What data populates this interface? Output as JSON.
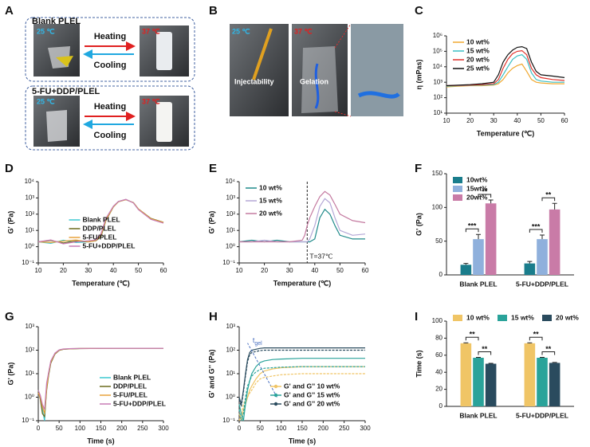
{
  "panel_a": {
    "panel": "A",
    "top_label": "Blank PLEL",
    "bottom_label": "5-FU+DDP/PLEL",
    "cold_top": "25 ℃",
    "hot_top": "37 ℃",
    "cold_bottom": "25 ℃",
    "hot_bottom": "37 ℃",
    "heating_top": "Heating",
    "cooling_top": "Cooling",
    "heating_bottom": "Heating",
    "cooling_bottom": "Cooling"
  },
  "panel_b": {
    "panel": "B",
    "cold": "25 ℃",
    "hot": "37 ℃",
    "left_caption": "Injectability",
    "middle_caption": "Gelation"
  },
  "chart_data": [
    {
      "type": "line",
      "panel": "C",
      "xlabel": "Temperature (℃)",
      "ylabel": "η (mPas)",
      "yscale": "log",
      "legend": "upper left",
      "xlim": [
        10,
        60
      ],
      "xticks": [
        10,
        20,
        30,
        40,
        50,
        60
      ],
      "ylim": [
        10,
        1000000
      ],
      "yticks": [
        {
          "value": 10,
          "label": "10¹"
        },
        {
          "value": 100,
          "label": "10²"
        },
        {
          "value": 1000,
          "label": "10³"
        },
        {
          "value": 10000,
          "label": "10⁴"
        },
        {
          "value": 100000,
          "label": "10⁵"
        },
        {
          "value": 1000000,
          "label": "10⁶"
        }
      ],
      "x": [
        10,
        15,
        20,
        25,
        30,
        32,
        34,
        36,
        38,
        40,
        42,
        44,
        46,
        48,
        50,
        55,
        60
      ],
      "series": [
        {
          "name": "10 wt%",
          "color": "#f0a830",
          "values": [
            500,
            550,
            600,
            600,
            650,
            800,
            1500,
            4000,
            8000,
            12000,
            15000,
            5000,
            1500,
            1000,
            900,
            800,
            800
          ]
        },
        {
          "name": "15 wt%",
          "color": "#3bbfc4",
          "values": [
            550,
            600,
            620,
            650,
            700,
            1000,
            3000,
            10000,
            30000,
            50000,
            60000,
            30000,
            4000,
            1500,
            1200,
            1000,
            1000
          ]
        },
        {
          "name": "20 wt%",
          "color": "#e0302a",
          "values": [
            600,
            620,
            650,
            700,
            800,
            1500,
            8000,
            30000,
            70000,
            100000,
            110000,
            60000,
            8000,
            3000,
            2000,
            1500,
            1300
          ]
        },
        {
          "name": "25 wt%",
          "color": "#111111",
          "values": [
            600,
            650,
            700,
            800,
            1000,
            3000,
            20000,
            60000,
            120000,
            180000,
            200000,
            150000,
            20000,
            5000,
            3000,
            2500,
            2000
          ]
        }
      ]
    },
    {
      "type": "line",
      "panel": "D",
      "xlabel": "Temperature (℃)",
      "ylabel": "G' (Pa)",
      "yscale": "log",
      "legend": "lower center",
      "xlim": [
        10,
        60
      ],
      "xticks": [
        10,
        20,
        30,
        40,
        50,
        60
      ],
      "ylim": [
        0.1,
        10000
      ],
      "yticks": [
        {
          "value": 0.1,
          "label": "10⁻¹"
        },
        {
          "value": 1,
          "label": "10⁰"
        },
        {
          "value": 10,
          "label": "10¹"
        },
        {
          "value": 100,
          "label": "10²"
        },
        {
          "value": 1000,
          "label": "10³"
        },
        {
          "value": 10000,
          "label": "10⁴"
        }
      ],
      "x": [
        10,
        15,
        20,
        25,
        30,
        33,
        35,
        37,
        40,
        42,
        45,
        48,
        50,
        55,
        60
      ],
      "series": [
        {
          "name": "Blank PLEL",
          "color": "#3cc8d0",
          "values": [
            2,
            1.6,
            2.5,
            1.8,
            2,
            2.5,
            5,
            50,
            300,
            600,
            800,
            500,
            200,
            50,
            30
          ]
        },
        {
          "name": "DDP/PLEL",
          "color": "#6b6b1e",
          "values": [
            2,
            2.4,
            1.7,
            2.2,
            2,
            2.3,
            4,
            40,
            280,
            580,
            780,
            520,
            210,
            55,
            32
          ]
        },
        {
          "name": "5-FU/PLEL",
          "color": "#e8a33c",
          "values": [
            2,
            1.8,
            2.2,
            2.6,
            2,
            2.4,
            5,
            45,
            290,
            590,
            790,
            510,
            205,
            52,
            31
          ]
        },
        {
          "name": "5-FU+DDP/PLEL",
          "color": "#c77bb5",
          "values": [
            2,
            2.6,
            1.5,
            2,
            2.3,
            2.6,
            6,
            55,
            310,
            610,
            820,
            490,
            190,
            48,
            28
          ]
        }
      ]
    },
    {
      "type": "line",
      "panel": "E",
      "xlabel": "Temperature (℃)",
      "ylabel": "G' (Pa)",
      "yscale": "log",
      "legend": "upper left",
      "annotation": "T=37℃",
      "vline": 37,
      "xlim": [
        10,
        60
      ],
      "xticks": [
        10,
        20,
        30,
        40,
        50,
        60
      ],
      "ylim": [
        0.1,
        10000
      ],
      "yticks": [
        {
          "value": 0.1,
          "label": "10⁻¹"
        },
        {
          "value": 1,
          "label": "10⁰"
        },
        {
          "value": 10,
          "label": "10¹"
        },
        {
          "value": 100,
          "label": "10²"
        },
        {
          "value": 1000,
          "label": "10³"
        },
        {
          "value": 10000,
          "label": "10⁴"
        }
      ],
      "x": [
        10,
        15,
        20,
        25,
        30,
        35,
        36,
        37,
        38,
        40,
        42,
        44,
        46,
        48,
        50,
        55,
        60
      ],
      "series": [
        {
          "name": "10 wt%",
          "color": "#1f8a8a",
          "values": [
            2,
            2.5,
            2,
            2.5,
            2,
            2,
            2,
            2,
            2,
            3,
            60,
            200,
            100,
            20,
            5,
            3,
            3
          ]
        },
        {
          "name": "15 wt%",
          "color": "#b4a7d6",
          "values": [
            2,
            2,
            2.5,
            2,
            2,
            2,
            2,
            2,
            3,
            20,
            300,
            900,
            500,
            60,
            10,
            5,
            6
          ]
        },
        {
          "name": "20 wt%",
          "color": "#c47aa0",
          "values": [
            2,
            2,
            2,
            2,
            2,
            2.5,
            5,
            20,
            60,
            300,
            1200,
            2500,
            1500,
            400,
            100,
            40,
            30
          ]
        }
      ]
    },
    {
      "type": "bar",
      "panel": "F",
      "ylabel": "G' (Pa)",
      "legend": "upper left",
      "categories": [
        "Blank PLEL",
        "5-FU+DDP/PLEL"
      ],
      "ylim": [
        0,
        150
      ],
      "yticks": [
        0,
        50,
        100,
        150
      ],
      "series": [
        {
          "name": "10wt%",
          "color": "#1a7d8c",
          "values": [
            15,
            17
          ],
          "errors": [
            2,
            3
          ]
        },
        {
          "name": "15wt%",
          "color": "#8fb0dc",
          "values": [
            53,
            53
          ],
          "errors": [
            7,
            6
          ]
        },
        {
          "name": "20wt%",
          "color": "#c97ba7",
          "values": [
            106,
            97
          ],
          "errors": [
            5,
            9
          ]
        }
      ],
      "significance": [
        {
          "category": 0,
          "from": 0,
          "to": 1,
          "label": "***"
        },
        {
          "category": 0,
          "from": 1,
          "to": 2,
          "label": "**"
        },
        {
          "category": 1,
          "from": 0,
          "to": 1,
          "label": "***"
        },
        {
          "category": 1,
          "from": 1,
          "to": 2,
          "label": "**"
        }
      ]
    },
    {
      "type": "line",
      "panel": "G",
      "xlabel": "Time (s)",
      "ylabel": "G' (Pa)",
      "yscale": "log",
      "legend": "lower right",
      "xlim": [
        0,
        300
      ],
      "xticks": [
        0,
        50,
        100,
        150,
        200,
        250,
        300
      ],
      "ylim": [
        0.1,
        1000
      ],
      "yticks": [
        {
          "value": 0.1,
          "label": "10⁻¹"
        },
        {
          "value": 1,
          "label": "10⁰"
        },
        {
          "value": 10,
          "label": "10¹"
        },
        {
          "value": 100,
          "label": "10²"
        },
        {
          "value": 1000,
          "label": "10³"
        }
      ],
      "x": [
        0,
        5,
        10,
        15,
        20,
        25,
        30,
        40,
        50,
        60,
        80,
        100,
        150,
        200,
        250,
        300
      ],
      "series": [
        {
          "name": "Blank PLEL",
          "color": "#3cc8d0",
          "values": [
            2,
            1,
            0.3,
            0.1,
            3,
            10,
            30,
            70,
            100,
            110,
            115,
            118,
            120,
            120,
            120,
            120
          ]
        },
        {
          "name": "DDP/PLEL",
          "color": "#6b6b1e",
          "values": [
            2,
            0.8,
            0.2,
            0.15,
            2,
            9,
            28,
            68,
            98,
            109,
            114,
            117,
            119,
            120,
            120,
            120
          ]
        },
        {
          "name": "5-FU/PLEL",
          "color": "#e8a33c",
          "values": [
            1.5,
            1,
            0.4,
            0.2,
            2.5,
            11,
            32,
            72,
            101,
            111,
            116,
            118,
            120,
            121,
            121,
            121
          ]
        },
        {
          "name": "5-FU+DDP/PLEL",
          "color": "#c77bb5",
          "values": [
            2,
            1.2,
            0.5,
            0.3,
            4,
            12,
            35,
            75,
            103,
            112,
            117,
            119,
            121,
            121,
            121,
            121
          ]
        }
      ]
    },
    {
      "type": "line",
      "panel": "H",
      "xlabel": "Time (s)",
      "ylabel": "G' and G'' (Pa)",
      "yscale": "log",
      "legend": "lower center",
      "annotation_main": "t",
      "annotation_sub": "gel",
      "xlim": [
        0,
        300
      ],
      "xticks": [
        0,
        50,
        100,
        150,
        200,
        250,
        300
      ],
      "ylim": [
        0.1,
        1000
      ],
      "yticks": [
        {
          "value": 0.1,
          "label": "10⁻¹"
        },
        {
          "value": 1,
          "label": "10⁰"
        },
        {
          "value": 10,
          "label": "10¹"
        },
        {
          "value": 100,
          "label": "10²"
        },
        {
          "value": 1000,
          "label": "10³"
        }
      ],
      "x": [
        0,
        5,
        10,
        15,
        20,
        25,
        30,
        40,
        50,
        60,
        80,
        100,
        150,
        200,
        250,
        300
      ],
      "series": [
        {
          "name": "G' and G'' 10 wt%",
          "color": "#f0c566",
          "g_prime": [
            0.2,
            0.1,
            0.3,
            0.5,
            1,
            2,
            3,
            6,
            10,
            13,
            16,
            18,
            20,
            20,
            20,
            20
          ],
          "g_double_prime": [
            0.1,
            0.2,
            0.5,
            0.8,
            1,
            1.5,
            2,
            4,
            6,
            7,
            8,
            9,
            10,
            10,
            10,
            10
          ]
        },
        {
          "name": "G' and G'' 15 wt%",
          "color": "#2aa39a",
          "g_prime": [
            0.5,
            0.2,
            0.1,
            0.5,
            2,
            5,
            10,
            20,
            30,
            35,
            40,
            42,
            45,
            45,
            45,
            45
          ],
          "g_double_prime": [
            0.3,
            0.1,
            0.2,
            1,
            3,
            5,
            8,
            12,
            15,
            17,
            18,
            19,
            20,
            20,
            20,
            20
          ]
        },
        {
          "name": "G' and G'' 20 wt%",
          "color": "#2a4b5e",
          "g_prime": [
            1,
            0.5,
            2,
            10,
            40,
            80,
            100,
            110,
            120,
            125,
            125,
            125,
            125,
            125,
            125,
            125
          ],
          "g_double_prime": [
            0.8,
            0.4,
            1.6,
            8,
            32,
            64,
            80,
            88,
            96,
            100,
            100,
            100,
            100,
            100,
            100,
            100
          ]
        }
      ]
    },
    {
      "type": "bar",
      "panel": "I",
      "ylabel": "Time (s)",
      "legend": "top",
      "categories": [
        "Blank PLEL",
        "5-FU+DDP/PLEL"
      ],
      "ylim": [
        0,
        100
      ],
      "yticks": [
        0,
        20,
        40,
        60,
        80,
        100
      ],
      "series": [
        {
          "name": "10 wt%",
          "color": "#f0c566",
          "values": [
            74,
            74
          ],
          "errors": [
            0.5,
            0.5
          ]
        },
        {
          "name": "15 wt%",
          "color": "#2aa39a",
          "values": [
            57,
            57
          ],
          "errors": [
            0.5,
            0.5
          ]
        },
        {
          "name": "20 wt%",
          "color": "#2a4b5e",
          "values": [
            50,
            51
          ],
          "errors": [
            0.5,
            0.5
          ]
        }
      ],
      "significance": [
        {
          "category": 0,
          "from": 0,
          "to": 1,
          "label": "**"
        },
        {
          "category": 0,
          "from": 1,
          "to": 2,
          "label": "**"
        },
        {
          "category": 1,
          "from": 0,
          "to": 1,
          "label": "**"
        },
        {
          "category": 1,
          "from": 1,
          "to": 2,
          "label": "**"
        }
      ]
    }
  ]
}
